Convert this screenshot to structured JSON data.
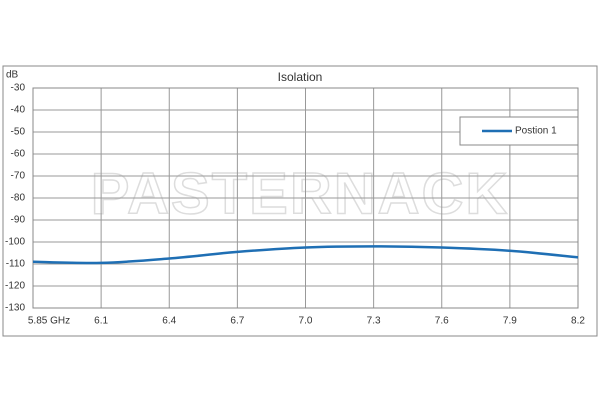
{
  "chart_data": {
    "type": "line",
    "title": "Isolation",
    "y_label": "dB",
    "watermark": "PASTERNACK",
    "categories": [
      "5.85 GHz",
      "6.1",
      "6.4",
      "6.7",
      "7.0",
      "7.3",
      "7.6",
      "7.9",
      "8.2"
    ],
    "series": [
      {
        "name": "Postion 1",
        "color": "#1f6fb4",
        "values": [
          -109,
          -109.5,
          -107.5,
          -104.5,
          -102.5,
          -102,
          -102.5,
          -104,
          -107
        ]
      }
    ],
    "ylim": [
      -130,
      -30
    ],
    "yticks": [
      -30,
      -40,
      -50,
      -60,
      -70,
      -80,
      -90,
      -100,
      -110,
      -120,
      -130
    ],
    "grid": true,
    "legend": "upper right"
  }
}
